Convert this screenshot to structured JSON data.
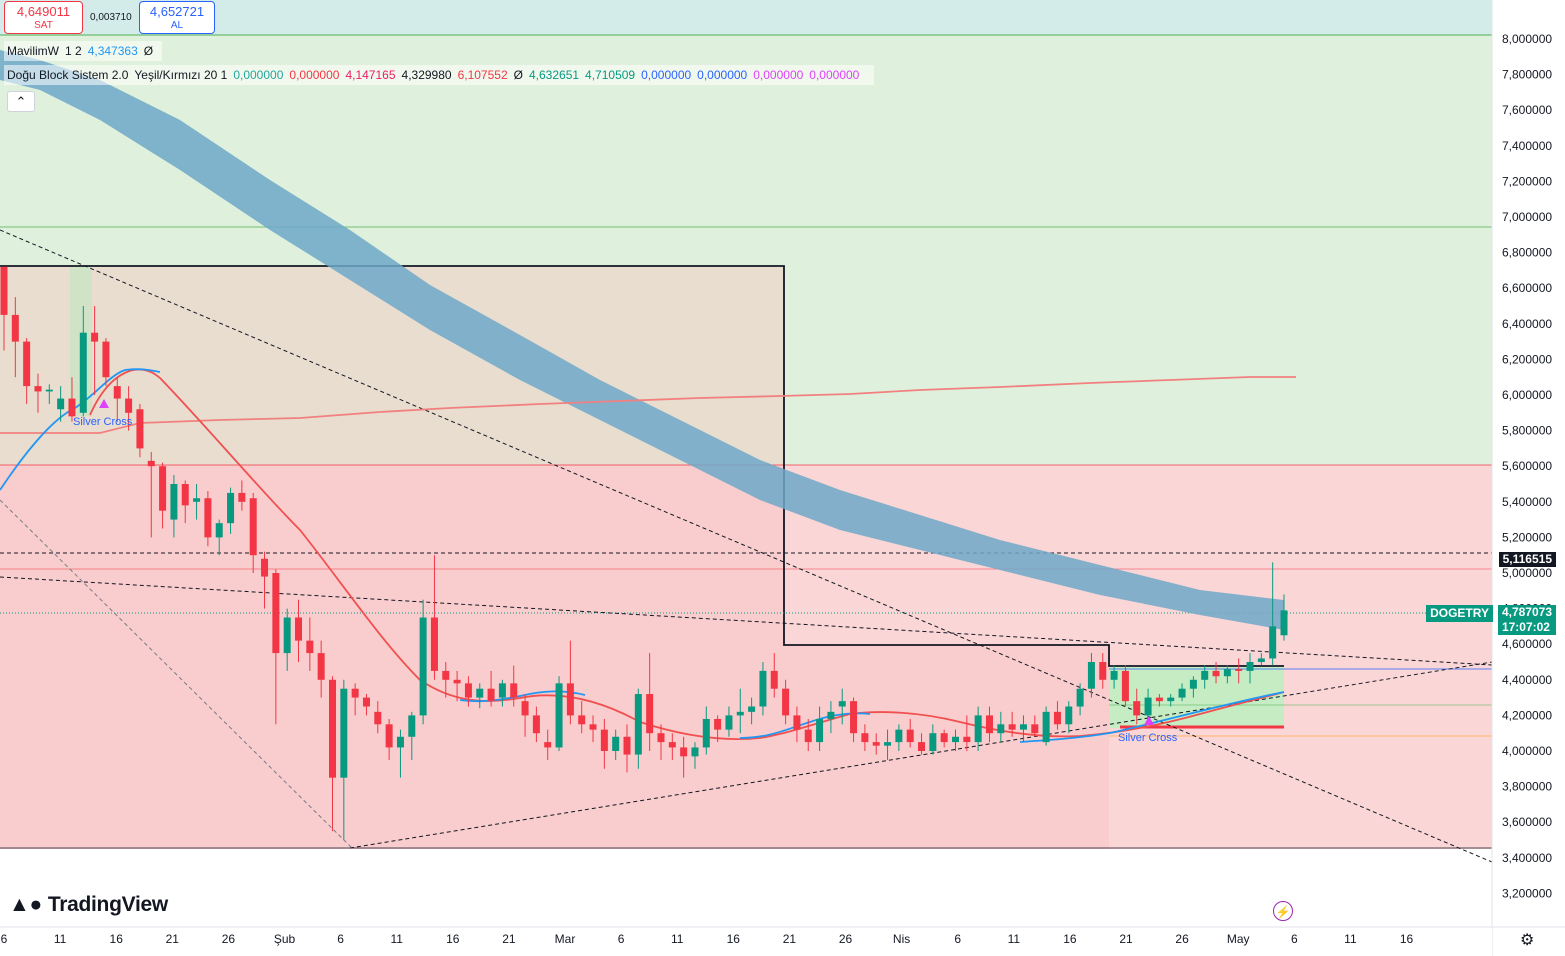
{
  "order_panel": {
    "sell_price": "4,649011",
    "sell_label": "SAT",
    "spread": "0,003710",
    "buy_price": "4,652721",
    "buy_label": "AL"
  },
  "legend": {
    "indicator1_name": "MavilimW",
    "indicator1_params": "1 2",
    "indicator1_value": "4,347363",
    "indicator1_icon": "Ø",
    "indicator2_name": "Doğu Block Sistem 2.0",
    "indicator2_params": "Yeşil/Kırmızı 20 1",
    "indicator2_values": [
      {
        "v": "0,000000",
        "color": "#26a69a"
      },
      {
        "v": "0,000000",
        "color": "#f23645"
      },
      {
        "v": "4,147165",
        "color": "#e91e63"
      },
      {
        "v": "4,329980",
        "color": "#131722"
      },
      {
        "v": "6,107552",
        "color": "#f23645"
      },
      {
        "v": "Ø",
        "color": "#131722"
      },
      {
        "v": "4,632651",
        "color": "#089981"
      },
      {
        "v": "4,710509",
        "color": "#089981"
      },
      {
        "v": "0,000000",
        "color": "#2962ff"
      },
      {
        "v": "0,000000",
        "color": "#2962ff"
      },
      {
        "v": "0,000000",
        "color": "#e040fb"
      },
      {
        "v": "0,000000",
        "color": "#e040fb"
      }
    ],
    "collapse_icon": "chevron-up-icon"
  },
  "price_axis": {
    "ticks": [
      "8,000000",
      "7,800000",
      "7,600000",
      "7,400000",
      "7,200000",
      "7,000000",
      "6,800000",
      "6,600000",
      "6,400000",
      "6,200000",
      "6,000000",
      "5,800000",
      "5,600000",
      "5,400000",
      "5,200000",
      "5,000000",
      "4,800000",
      "4,600000",
      "4,400000",
      "4,200000",
      "4,000000",
      "3,800000",
      "3,600000",
      "3,400000",
      "3,200000"
    ],
    "last_marked_price": "5,116515",
    "current_price": "4,787073",
    "countdown": "17:07:02",
    "symbol": "DOGETRY"
  },
  "time_axis": {
    "ticks": [
      "6",
      "11",
      "16",
      "21",
      "26",
      "Şub",
      "6",
      "11",
      "16",
      "21",
      "Mar",
      "6",
      "11",
      "16",
      "21",
      "26",
      "Nis",
      "6",
      "11",
      "16",
      "21",
      "26",
      "May",
      "6",
      "11",
      "16"
    ]
  },
  "annotations": {
    "silver_cross_1": "Silver Cross",
    "silver_cross_2": "Silver Cross"
  },
  "branding": {
    "logo_text": "TradingView"
  },
  "colors": {
    "bull": "#089981",
    "bear": "#f23645",
    "mavilim_band": "#6fa8c9",
    "green_zone": "#dff1dc",
    "red_zone": "#fbd3d3"
  },
  "chart_data": {
    "type": "candlestick",
    "symbol": "DOGETRY",
    "y_range": [
      3.2,
      8.0
    ],
    "candles_ohlc": [
      [
        6.72,
        6.72,
        6.25,
        6.45
      ],
      [
        6.45,
        6.55,
        6.1,
        6.3
      ],
      [
        6.3,
        6.32,
        5.95,
        6.05
      ],
      [
        6.05,
        6.12,
        5.9,
        6.02
      ],
      [
        6.02,
        6.06,
        5.95,
        6.03
      ],
      [
        5.92,
        6.05,
        5.85,
        5.98
      ],
      [
        5.98,
        6.1,
        5.85,
        5.88
      ],
      [
        5.9,
        6.5,
        5.88,
        6.35
      ],
      [
        6.35,
        6.5,
        6.0,
        6.3
      ],
      [
        6.3,
        6.32,
        6.05,
        6.1
      ],
      [
        6.05,
        6.1,
        5.85,
        5.98
      ],
      [
        5.98,
        6.05,
        5.8,
        5.9
      ],
      [
        5.92,
        5.95,
        5.65,
        5.7
      ],
      [
        5.63,
        5.68,
        5.2,
        5.6
      ],
      [
        5.6,
        5.62,
        5.25,
        5.35
      ],
      [
        5.3,
        5.55,
        5.2,
        5.5
      ],
      [
        5.5,
        5.52,
        5.28,
        5.38
      ],
      [
        5.4,
        5.5,
        5.3,
        5.42
      ],
      [
        5.42,
        5.46,
        5.15,
        5.2
      ],
      [
        5.2,
        5.3,
        5.1,
        5.28
      ],
      [
        5.28,
        5.48,
        5.22,
        5.45
      ],
      [
        5.45,
        5.52,
        5.35,
        5.4
      ],
      [
        5.42,
        5.45,
        5.0,
        5.1
      ],
      [
        5.08,
        5.12,
        4.8,
        4.98
      ],
      [
        5.0,
        5.02,
        4.15,
        4.55
      ],
      [
        4.55,
        4.8,
        4.45,
        4.75
      ],
      [
        4.75,
        4.85,
        4.5,
        4.62
      ],
      [
        4.62,
        4.75,
        4.45,
        4.55
      ],
      [
        4.55,
        4.62,
        4.3,
        4.4
      ],
      [
        4.4,
        4.42,
        3.55,
        3.85
      ],
      [
        3.85,
        4.4,
        3.5,
        4.35
      ],
      [
        4.35,
        4.38,
        4.2,
        4.3
      ],
      [
        4.3,
        4.32,
        4.2,
        4.25
      ],
      [
        4.22,
        4.28,
        4.1,
        4.15
      ],
      [
        4.15,
        4.18,
        3.95,
        4.02
      ],
      [
        4.02,
        4.12,
        3.85,
        4.08
      ],
      [
        4.08,
        4.22,
        3.95,
        4.2
      ],
      [
        4.2,
        4.85,
        4.15,
        4.75
      ],
      [
        4.75,
        5.1,
        4.4,
        4.45
      ],
      [
        4.45,
        4.5,
        4.3,
        4.4
      ],
      [
        4.4,
        4.45,
        4.28,
        4.38
      ],
      [
        4.38,
        4.42,
        4.25,
        4.3
      ],
      [
        4.3,
        4.38,
        4.24,
        4.35
      ],
      [
        4.35,
        4.45,
        4.25,
        4.28
      ],
      [
        4.3,
        4.4,
        4.25,
        4.38
      ],
      [
        4.38,
        4.48,
        4.25,
        4.3
      ],
      [
        4.28,
        4.32,
        4.08,
        4.2
      ],
      [
        4.2,
        4.25,
        4.05,
        4.1
      ],
      [
        4.05,
        4.12,
        3.95,
        4.02
      ],
      [
        4.02,
        4.42,
        4.0,
        4.38
      ],
      [
        4.38,
        4.62,
        4.15,
        4.2
      ],
      [
        4.2,
        4.28,
        4.1,
        4.15
      ],
      [
        4.15,
        4.2,
        4.05,
        4.12
      ],
      [
        4.12,
        4.18,
        3.9,
        4.0
      ],
      [
        4.0,
        4.12,
        3.95,
        4.08
      ],
      [
        4.08,
        4.15,
        3.88,
        3.98
      ],
      [
        3.98,
        4.35,
        3.9,
        4.32
      ],
      [
        4.32,
        4.55,
        4.0,
        4.1
      ],
      [
        4.1,
        4.15,
        3.95,
        4.05
      ],
      [
        4.05,
        4.1,
        3.95,
        4.02
      ],
      [
        4.02,
        4.08,
        3.85,
        3.97
      ],
      [
        3.97,
        4.05,
        3.9,
        4.02
      ],
      [
        4.02,
        4.25,
        3.98,
        4.18
      ],
      [
        4.18,
        4.2,
        4.05,
        4.12
      ],
      [
        4.12,
        4.25,
        4.08,
        4.2
      ],
      [
        4.2,
        4.35,
        4.1,
        4.22
      ],
      [
        4.22,
        4.3,
        4.15,
        4.25
      ],
      [
        4.25,
        4.5,
        4.2,
        4.45
      ],
      [
        4.45,
        4.55,
        4.3,
        4.35
      ],
      [
        4.35,
        4.4,
        4.15,
        4.2
      ],
      [
        4.2,
        4.25,
        4.05,
        4.12
      ],
      [
        4.12,
        4.18,
        4.0,
        4.05
      ],
      [
        4.05,
        4.25,
        4.0,
        4.18
      ],
      [
        4.18,
        4.28,
        4.1,
        4.22
      ],
      [
        4.25,
        4.35,
        4.15,
        4.28
      ],
      [
        4.28,
        4.3,
        4.05,
        4.1
      ],
      [
        4.1,
        4.15,
        4.0,
        4.05
      ],
      [
        4.05,
        4.1,
        3.98,
        4.03
      ],
      [
        4.03,
        4.12,
        3.95,
        4.05
      ],
      [
        4.05,
        4.15,
        4.0,
        4.12
      ],
      [
        4.12,
        4.18,
        4.02,
        4.05
      ],
      [
        4.05,
        4.1,
        3.98,
        4.0
      ],
      [
        4.0,
        4.15,
        3.98,
        4.1
      ],
      [
        4.1,
        4.12,
        4.02,
        4.05
      ],
      [
        4.05,
        4.12,
        4.0,
        4.08
      ],
      [
        4.08,
        4.2,
        4.0,
        4.05
      ],
      [
        4.05,
        4.25,
        4.0,
        4.2
      ],
      [
        4.2,
        4.25,
        4.05,
        4.1
      ],
      [
        4.1,
        4.22,
        4.05,
        4.15
      ],
      [
        4.15,
        4.22,
        4.08,
        4.12
      ],
      [
        4.12,
        4.2,
        4.05,
        4.15
      ],
      [
        4.15,
        4.2,
        4.08,
        4.1
      ],
      [
        4.05,
        4.25,
        4.03,
        4.22
      ],
      [
        4.22,
        4.28,
        4.12,
        4.15
      ],
      [
        4.15,
        4.28,
        4.1,
        4.25
      ],
      [
        4.25,
        4.38,
        4.2,
        4.35
      ],
      [
        4.35,
        4.55,
        4.3,
        4.5
      ],
      [
        4.5,
        4.55,
        4.35,
        4.4
      ],
      [
        4.4,
        4.48,
        4.35,
        4.45
      ],
      [
        4.45,
        4.48,
        4.25,
        4.28
      ],
      [
        4.28,
        4.35,
        4.15,
        4.2
      ],
      [
        4.2,
        4.35,
        4.18,
        4.3
      ],
      [
        4.3,
        4.32,
        4.25,
        4.28
      ],
      [
        4.28,
        4.32,
        4.25,
        4.3
      ],
      [
        4.3,
        4.38,
        4.28,
        4.35
      ],
      [
        4.35,
        4.42,
        4.3,
        4.4
      ],
      [
        4.4,
        4.48,
        4.35,
        4.45
      ],
      [
        4.45,
        4.5,
        4.38,
        4.42
      ],
      [
        4.42,
        4.48,
        4.38,
        4.46
      ],
      [
        4.46,
        4.52,
        4.38,
        4.45
      ],
      [
        4.45,
        4.55,
        4.38,
        4.5
      ],
      [
        4.5,
        4.55,
        4.48,
        4.52
      ],
      [
        4.52,
        5.06,
        4.48,
        4.7
      ],
      [
        4.65,
        4.88,
        4.62,
        4.79
      ]
    ]
  }
}
